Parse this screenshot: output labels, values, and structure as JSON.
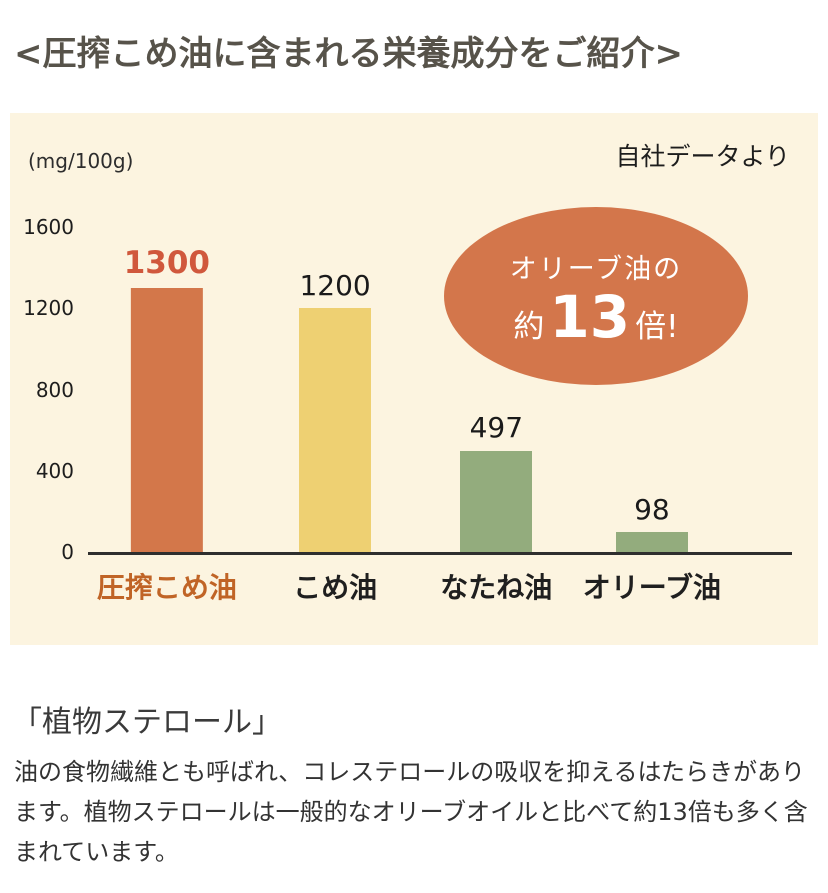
{
  "page": {
    "title": "<圧搾こめ油に含まれる栄養成分をご紹介>"
  },
  "chart": {
    "unit_label": "(mg/100g)",
    "source_label": "自社データより",
    "badge": {
      "line1": "オリーブ油の",
      "prefix": "約",
      "number": "13",
      "suffix": "倍!",
      "color": "#d3764b"
    }
  },
  "chart_data": {
    "type": "bar",
    "categories": [
      "圧搾こめ油",
      "こめ油",
      "なたね油",
      "オリーブ油"
    ],
    "values": [
      1300,
      1200,
      497,
      98
    ],
    "value_labels": [
      "1300",
      "1200",
      "497",
      "98"
    ],
    "unit": "mg/100g",
    "ylim": [
      0,
      1600
    ],
    "y_ticks": [
      1600,
      1200,
      800,
      400,
      0
    ],
    "grid": false,
    "legend": false,
    "annotation": "オリーブ油の約13倍!",
    "source": "自社データより",
    "bar_colors": [
      "#d3774a",
      "#eed072",
      "#93ac7d",
      "#93ac7d"
    ],
    "value_label_colors": [
      "#d0583c",
      "#1a1a1a",
      "#1a1a1a",
      "#1a1a1a"
    ],
    "category_label_colors": [
      "#c06426",
      "#1f1f1f",
      "#1f1f1f",
      "#1f1f1f"
    ],
    "panel_background": "#fcf4e0"
  },
  "section": {
    "title": "「植物ステロール」",
    "body": "油の食物繊維とも呼ばれ、コレステロールの吸収を抑えるはたらきがあります。植物ステロールは一般的なオリーブオイルと比べて約13倍も多く含まれています。"
  }
}
